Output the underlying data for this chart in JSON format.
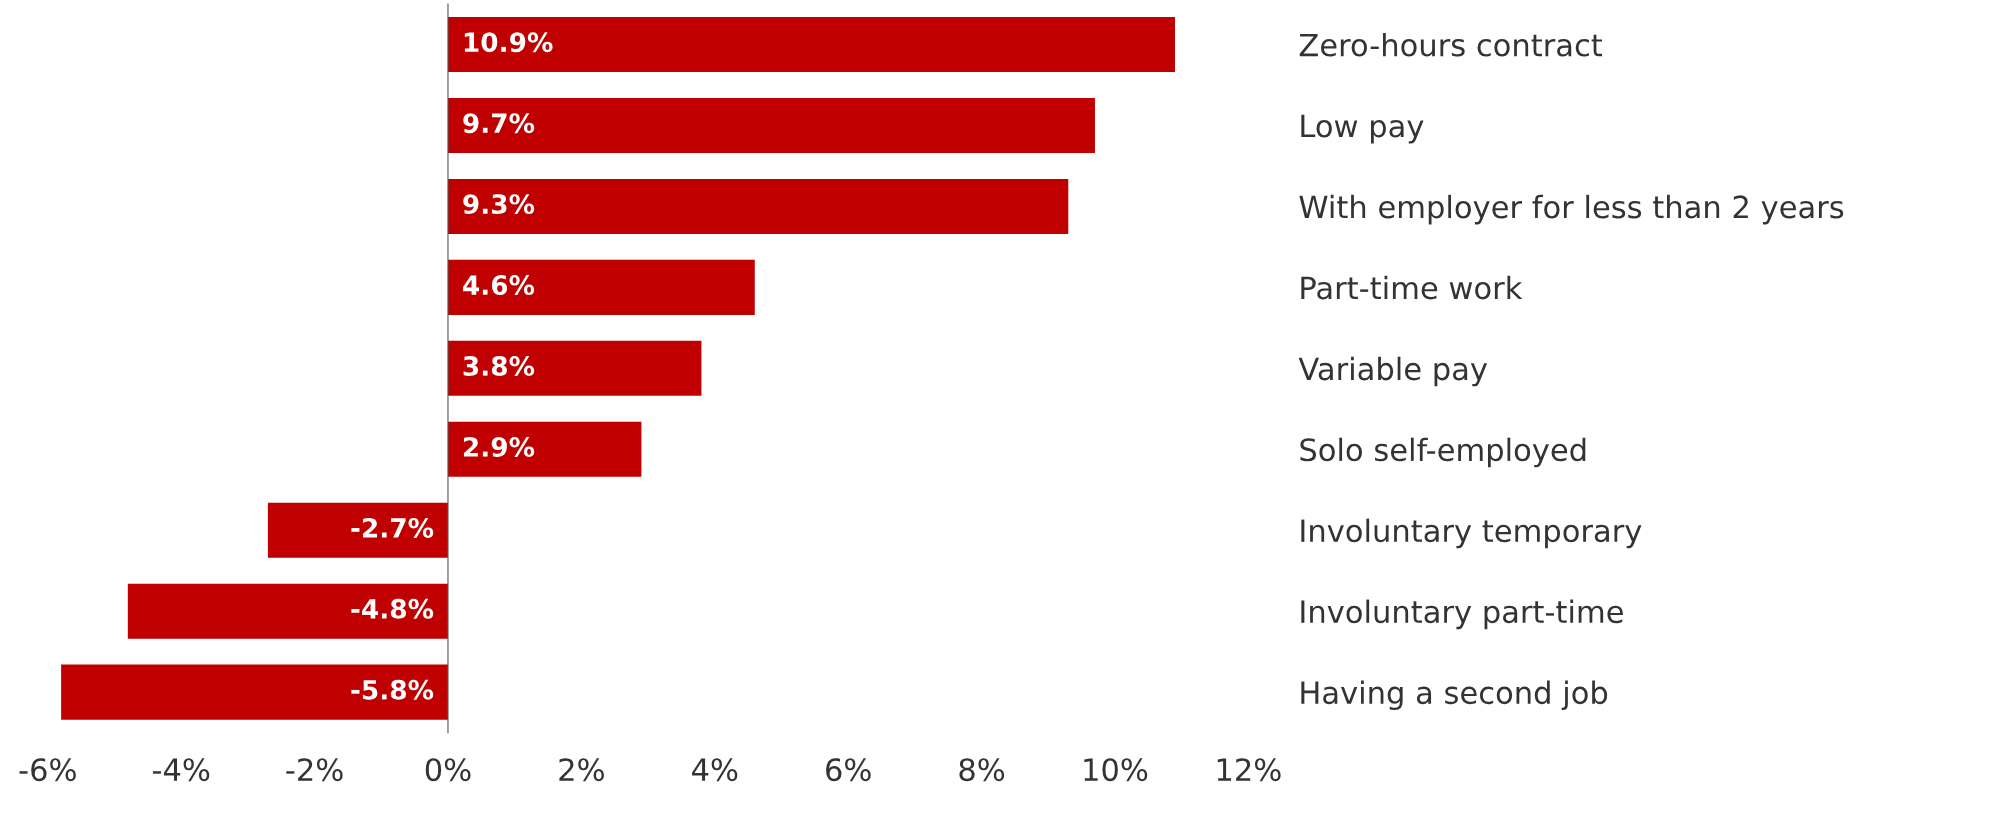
{
  "chart_data": {
    "type": "bar",
    "orientation": "horizontal",
    "categories": [
      "Zero-hours contract",
      "Low pay",
      "With employer for less than 2 years",
      "Part-time work",
      "Variable pay",
      "Solo self-employed",
      "Involuntary temporary",
      "Involuntary part-time",
      "Having a second job"
    ],
    "values": [
      10.9,
      9.7,
      9.3,
      4.6,
      3.8,
      2.9,
      -2.7,
      -4.8,
      -5.8
    ],
    "value_labels": [
      "10.9%",
      "9.7%",
      "9.3%",
      "4.6%",
      "3.8%",
      "2.9%",
      "-2.7%",
      "-4.8%",
      "-5.8%"
    ],
    "color": "#c00000",
    "xlim": [
      -6,
      12
    ],
    "xticks": [
      {
        "value": -6,
        "label": "-6%"
      },
      {
        "value": -4,
        "label": "-4%"
      },
      {
        "value": -2,
        "label": "-2%"
      },
      {
        "value": 0,
        "label": "0%"
      },
      {
        "value": 2,
        "label": "2%"
      },
      {
        "value": 4,
        "label": "4%"
      },
      {
        "value": 6,
        "label": "6%"
      },
      {
        "value": 8,
        "label": "8%"
      },
      {
        "value": 10,
        "label": "10%"
      },
      {
        "value": 12,
        "label": "12%"
      }
    ],
    "legend": false
  }
}
